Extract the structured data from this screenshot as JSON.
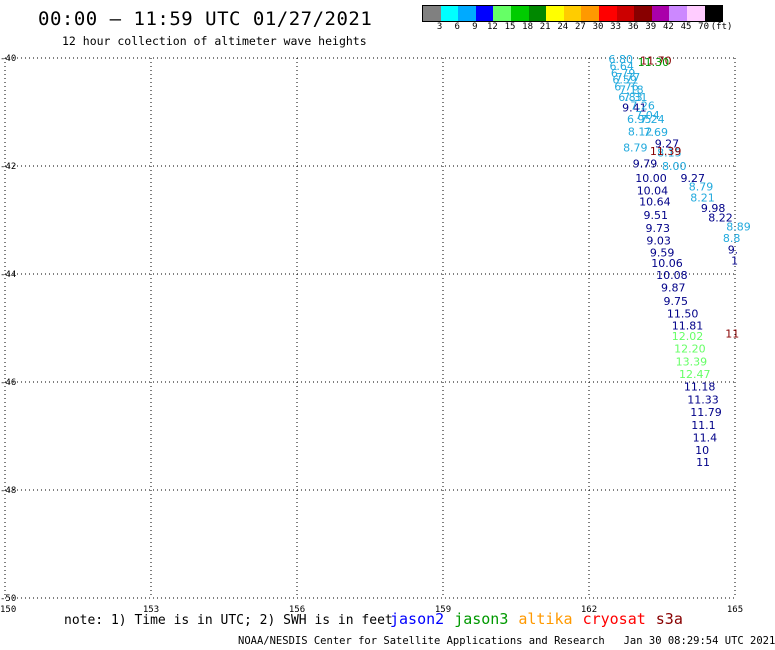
{
  "header": {
    "title": "00:00 – 11:59 UTC 01/27/2021",
    "subtitle": "12 hour collection of altimeter wave heights"
  },
  "colorbar": {
    "unit": "(ft)",
    "ticks": [
      "3",
      "6",
      "9",
      "12",
      "15",
      "18",
      "21",
      "24",
      "27",
      "30",
      "33",
      "36",
      "39",
      "42",
      "45",
      "70"
    ],
    "colors": [
      "#808080",
      "#00ffff",
      "#00aaff",
      "#0000ff",
      "#66ff66",
      "#00cc00",
      "#008800",
      "#ffff00",
      "#ffcc00",
      "#ff9900",
      "#ff0000",
      "#cc0000",
      "#880000",
      "#aa00aa",
      "#cc88ff",
      "#ffccff",
      "#000000"
    ]
  },
  "footer": {
    "note": "note: 1) Time is in UTC; 2) SWH is in feet",
    "credit": "NOAA/NESDIS Center for Satellite Applications and Research   Jan 30 08:29:54 UTC 2021"
  },
  "satellites": [
    {
      "name": "jason2",
      "color": "#0000ff"
    },
    {
      "name": "jason3",
      "color": "#009900"
    },
    {
      "name": "altika",
      "color": "#ff9900"
    },
    {
      "name": "cryosat",
      "color": "#ff0000"
    },
    {
      "name": "s3a",
      "color": "#880000"
    }
  ],
  "chart_data": {
    "type": "scatter",
    "x_ticks": [
      "150",
      "153",
      "156",
      "159",
      "162",
      "165"
    ],
    "y_ticks": [
      "-40",
      "-42",
      "-44",
      "-46",
      "-48",
      "-50"
    ],
    "xlim": [
      150,
      165
    ],
    "ylim": [
      -50,
      -40
    ],
    "grid": true,
    "points": [
      {
        "x": 162.4,
        "y": -40.02,
        "label": "6.80",
        "color": "#22aadd"
      },
      {
        "x": 162.42,
        "y": -40.15,
        "label": "6.64",
        "color": "#22aadd"
      },
      {
        "x": 162.45,
        "y": -40.28,
        "label": "6.79",
        "color": "#22aadd"
      },
      {
        "x": 162.48,
        "y": -40.4,
        "label": "6.59",
        "color": "#22aadd"
      },
      {
        "x": 162.55,
        "y": -40.35,
        "label": "7.77",
        "color": "#22aadd"
      },
      {
        "x": 162.52,
        "y": -40.53,
        "label": "6.76",
        "color": "#22aadd"
      },
      {
        "x": 162.62,
        "y": -40.58,
        "label": "7.18",
        "color": "#22aadd"
      },
      {
        "x": 162.6,
        "y": -40.72,
        "label": "6.83",
        "color": "#22aadd"
      },
      {
        "x": 162.7,
        "y": -40.72,
        "label": "7.31",
        "color": "#22aadd"
      },
      {
        "x": 162.68,
        "y": -40.92,
        "label": "9.41",
        "color": "#000088"
      },
      {
        "x": 162.85,
        "y": -40.88,
        "label": "7.26",
        "color": "#22aadd"
      },
      {
        "x": 162.95,
        "y": -41.06,
        "label": "7.04",
        "color": "#22aadd"
      },
      {
        "x": 162.78,
        "y": -41.13,
        "label": "6.95",
        "color": "#22aadd"
      },
      {
        "x": 163.05,
        "y": -41.13,
        "label": "7.24",
        "color": "#22aadd"
      },
      {
        "x": 162.8,
        "y": -41.36,
        "label": "8.12",
        "color": "#22aadd"
      },
      {
        "x": 163.12,
        "y": -41.37,
        "label": "7.69",
        "color": "#22aadd"
      },
      {
        "x": 163.35,
        "y": -41.58,
        "label": "9.27",
        "color": "#000088"
      },
      {
        "x": 162.7,
        "y": -41.66,
        "label": "8.79",
        "color": "#22aadd"
      },
      {
        "x": 163.4,
        "y": -41.75,
        "label": "8.15",
        "color": "#22aadd"
      },
      {
        "x": 162.9,
        "y": -41.95,
        "label": "9.79",
        "color": "#000088"
      },
      {
        "x": 163.5,
        "y": -42.0,
        "label": "8.00",
        "color": "#22aadd"
      },
      {
        "x": 162.95,
        "y": -42.22,
        "label": "10.00",
        "color": "#000088"
      },
      {
        "x": 163.88,
        "y": -42.22,
        "label": "9.27",
        "color": "#000088"
      },
      {
        "x": 162.98,
        "y": -42.45,
        "label": "10.04",
        "color": "#000088"
      },
      {
        "x": 164.05,
        "y": -42.38,
        "label": "8.79",
        "color": "#22aadd"
      },
      {
        "x": 164.08,
        "y": -42.58,
        "label": "8.21",
        "color": "#22aadd"
      },
      {
        "x": 163.03,
        "y": -42.66,
        "label": "10.64",
        "color": "#000088"
      },
      {
        "x": 164.3,
        "y": -42.78,
        "label": "9.98",
        "color": "#000088"
      },
      {
        "x": 163.12,
        "y": -42.91,
        "label": "9.51",
        "color": "#000088"
      },
      {
        "x": 164.45,
        "y": -42.95,
        "label": "8.22",
        "color": "#000088"
      },
      {
        "x": 163.16,
        "y": -43.15,
        "label": "9.73",
        "color": "#000088"
      },
      {
        "x": 164.82,
        "y": -43.12,
        "label": "8.89",
        "color": "#22aadd"
      },
      {
        "x": 163.18,
        "y": -43.38,
        "label": "9.03",
        "color": "#000088"
      },
      {
        "x": 163.25,
        "y": -43.6,
        "label": "9.59",
        "color": "#000088"
      },
      {
        "x": 163.28,
        "y": -43.8,
        "label": "10.06",
        "color": "#000088"
      },
      {
        "x": 163.38,
        "y": -44.02,
        "label": "10.08",
        "color": "#000088"
      },
      {
        "x": 163.48,
        "y": -44.25,
        "label": "9.87",
        "color": "#000088"
      },
      {
        "x": 163.53,
        "y": -44.5,
        "label": "9.75",
        "color": "#000088"
      },
      {
        "x": 163.6,
        "y": -44.73,
        "label": "11.50",
        "color": "#000088"
      },
      {
        "x": 163.7,
        "y": -44.95,
        "label": "11.81",
        "color": "#000088"
      },
      {
        "x": 163.7,
        "y": -45.15,
        "label": "12.02",
        "color": "#66ff66"
      },
      {
        "x": 163.75,
        "y": -45.38,
        "label": "12.20",
        "color": "#66ff66"
      },
      {
        "x": 163.78,
        "y": -45.62,
        "label": "13.39",
        "color": "#66ff66"
      },
      {
        "x": 163.85,
        "y": -45.85,
        "label": "12.47",
        "color": "#66ff66"
      },
      {
        "x": 163.95,
        "y": -46.08,
        "label": "11.18",
        "color": "#000088"
      },
      {
        "x": 164.02,
        "y": -46.32,
        "label": "11.33",
        "color": "#000088"
      },
      {
        "x": 164.08,
        "y": -46.56,
        "label": "11.79",
        "color": "#000088"
      },
      {
        "x": 164.1,
        "y": -46.8,
        "label": "11.1",
        "color": "#000088"
      },
      {
        "x": 164.13,
        "y": -47.03,
        "label": "11.4",
        "color": "#000088"
      },
      {
        "x": 164.18,
        "y": -47.26,
        "label": "10",
        "color": "#000088"
      },
      {
        "x": 164.2,
        "y": -47.48,
        "label": "11",
        "color": "#000088"
      },
      {
        "x": 164.75,
        "y": -43.33,
        "label": "8.8",
        "color": "#22aadd"
      },
      {
        "x": 164.85,
        "y": -43.55,
        "label": "9.",
        "color": "#000088"
      },
      {
        "x": 164.92,
        "y": -43.75,
        "label": "1",
        "color": "#000088"
      },
      {
        "x": 163.05,
        "y": -40.05,
        "label": "11.70",
        "color": "#880000"
      },
      {
        "x": 163.0,
        "y": -40.07,
        "label": "11.30",
        "color": "#009900"
      },
      {
        "x": 163.25,
        "y": -41.72,
        "label": "11.39",
        "color": "#880000"
      },
      {
        "x": 164.8,
        "y": -45.1,
        "label": "11",
        "color": "#880000"
      }
    ]
  }
}
